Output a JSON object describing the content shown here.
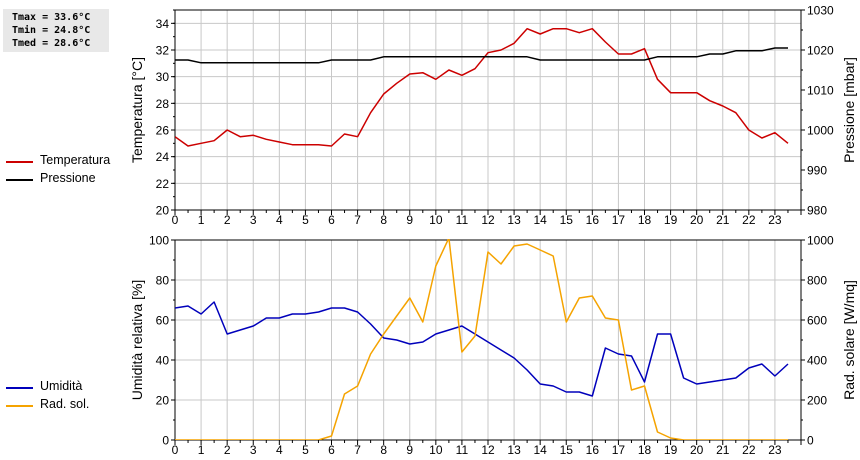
{
  "stats": {
    "tmax": "Tmax = 33.6°C",
    "tmin": "Tmin = 24.8°C",
    "tmed": "Tmed = 28.6°C"
  },
  "colors": {
    "temperature": "#cc0000",
    "pressure": "#000000",
    "humidity": "#0000bb",
    "solar": "#f5a300",
    "grid": "#c8c8c8"
  },
  "chart_data": [
    {
      "type": "line",
      "xlabel": "",
      "ylabel": "Temperatura [°C]",
      "ylabel_right": "Pressione [mbar]",
      "xlim": [
        0,
        24
      ],
      "ylim": [
        20,
        35
      ],
      "ylim_right": [
        980,
        1030
      ],
      "x_ticks": [
        "0",
        "1",
        "2",
        "3",
        "4",
        "5",
        "6",
        "7",
        "8",
        "9",
        "10",
        "11",
        "12",
        "13",
        "14",
        "15",
        "16",
        "17",
        "18",
        "19",
        "20",
        "21",
        "22",
        "23"
      ],
      "y_ticks": [
        "20",
        "22",
        "24",
        "26",
        "28",
        "30",
        "32",
        "34"
      ],
      "y_ticks_right": [
        "980",
        "990",
        "1000",
        "1010",
        "1020",
        "1030"
      ],
      "grid": true,
      "legend_position": "left",
      "series": [
        {
          "name": "Temperatura",
          "axis": "left",
          "x": [
            0,
            0.5,
            1,
            1.5,
            2,
            2.5,
            3,
            3.5,
            4,
            4.5,
            5,
            5.5,
            6,
            6.5,
            7,
            7.5,
            8,
            8.5,
            9,
            9.5,
            10,
            10.5,
            11,
            11.5,
            12,
            12.5,
            13,
            13.5,
            14,
            14.5,
            15,
            15.5,
            16,
            16.5,
            17,
            17.5,
            18,
            18.5,
            19,
            19.5,
            20,
            20.5,
            21,
            21.5,
            22,
            22.5,
            23,
            23.5
          ],
          "values": [
            25.5,
            24.8,
            25.0,
            25.2,
            26.0,
            25.5,
            25.6,
            25.3,
            25.1,
            24.9,
            24.9,
            24.9,
            24.8,
            25.7,
            25.5,
            27.3,
            28.7,
            29.5,
            30.2,
            30.3,
            29.8,
            30.5,
            30.1,
            30.6,
            31.8,
            32.0,
            32.5,
            33.6,
            33.2,
            33.6,
            33.6,
            33.3,
            33.6,
            32.6,
            31.7,
            31.7,
            32.1,
            29.8,
            28.8,
            28.8,
            28.8,
            28.2,
            27.8,
            27.3,
            26.0,
            25.4,
            25.8,
            25.0
          ]
        },
        {
          "name": "Pressione",
          "axis": "right",
          "x": [
            0,
            0.5,
            1,
            1.5,
            2,
            2.5,
            3,
            3.5,
            4,
            4.5,
            5,
            5.5,
            6,
            6.5,
            7,
            7.5,
            8,
            8.5,
            9,
            9.5,
            10,
            10.5,
            11,
            11.5,
            12,
            12.5,
            13,
            13.5,
            14,
            14.5,
            15,
            15.5,
            16,
            16.5,
            17,
            17.5,
            18,
            18.5,
            19,
            19.5,
            20,
            20.5,
            21,
            21.5,
            22,
            22.5,
            23,
            23.5
          ],
          "values": [
            1017.5,
            1017.5,
            1016.8,
            1016.8,
            1016.8,
            1016.8,
            1016.8,
            1016.8,
            1016.8,
            1016.8,
            1016.8,
            1016.8,
            1017.5,
            1017.5,
            1017.5,
            1017.5,
            1018.3,
            1018.3,
            1018.3,
            1018.3,
            1018.3,
            1018.3,
            1018.3,
            1018.3,
            1018.3,
            1018.3,
            1018.3,
            1018.3,
            1017.5,
            1017.5,
            1017.5,
            1017.5,
            1017.5,
            1017.5,
            1017.5,
            1017.5,
            1017.5,
            1018.3,
            1018.3,
            1018.3,
            1018.3,
            1019.0,
            1019.0,
            1019.8,
            1019.8,
            1019.8,
            1020.5,
            1020.5
          ]
        }
      ]
    },
    {
      "type": "line",
      "xlabel": "",
      "ylabel": "Umidità relativa [%]",
      "ylabel_right": "Rad. solare [W/mq]",
      "xlim": [
        0,
        24
      ],
      "ylim": [
        0,
        100
      ],
      "ylim_right": [
        0,
        1000
      ],
      "x_ticks": [
        "0",
        "1",
        "2",
        "3",
        "4",
        "5",
        "6",
        "7",
        "8",
        "9",
        "10",
        "11",
        "12",
        "13",
        "14",
        "15",
        "16",
        "17",
        "18",
        "19",
        "20",
        "21",
        "22",
        "23"
      ],
      "y_ticks": [
        "0",
        "20",
        "40",
        "60",
        "80",
        "100"
      ],
      "y_ticks_right": [
        "0",
        "200",
        "400",
        "600",
        "800",
        "1000"
      ],
      "grid": true,
      "legend_position": "left",
      "series": [
        {
          "name": "Umidità",
          "axis": "left",
          "x": [
            0,
            0.5,
            1,
            1.5,
            2,
            2.5,
            3,
            3.5,
            4,
            4.5,
            5,
            5.5,
            6,
            6.5,
            7,
            7.5,
            8,
            8.5,
            9,
            9.5,
            10,
            10.5,
            11,
            11.5,
            12,
            12.5,
            13,
            13.5,
            14,
            14.5,
            15,
            15.5,
            16,
            16.5,
            17,
            17.5,
            18,
            18.5,
            19,
            19.5,
            20,
            20.5,
            21,
            21.5,
            22,
            22.5,
            23,
            23.5
          ],
          "values": [
            66,
            67,
            63,
            69,
            53,
            55,
            57,
            61,
            61,
            63,
            63,
            64,
            66,
            66,
            64,
            58,
            51,
            50,
            48,
            49,
            53,
            55,
            57,
            53,
            49,
            45,
            41,
            35,
            28,
            27,
            24,
            24,
            22,
            46,
            43,
            42,
            29,
            53,
            53,
            31,
            28,
            29,
            30,
            31,
            36,
            38,
            32,
            38
          ]
        },
        {
          "name": "Rad. sol.",
          "axis": "right",
          "x": [
            0,
            0.5,
            1,
            1.5,
            2,
            2.5,
            3,
            3.5,
            4,
            4.5,
            5,
            5.5,
            6,
            6.5,
            7,
            7.5,
            8,
            8.5,
            9,
            9.5,
            10,
            10.5,
            11,
            11.5,
            12,
            12.5,
            13,
            13.5,
            14,
            14.5,
            15,
            15.5,
            16,
            16.5,
            17,
            17.5,
            18,
            18.5,
            19,
            19.5,
            20,
            20.5,
            21,
            21.5,
            22,
            22.5,
            23,
            23.5
          ],
          "values": [
            0,
            0,
            0,
            0,
            0,
            0,
            0,
            0,
            0,
            0,
            0,
            0,
            20,
            230,
            270,
            430,
            530,
            620,
            710,
            590,
            870,
            1010,
            440,
            520,
            940,
            880,
            970,
            980,
            950,
            920,
            590,
            710,
            720,
            610,
            600,
            250,
            270,
            40,
            10,
            0,
            0,
            0,
            0,
            0,
            0,
            0,
            0,
            0
          ]
        }
      ]
    }
  ]
}
